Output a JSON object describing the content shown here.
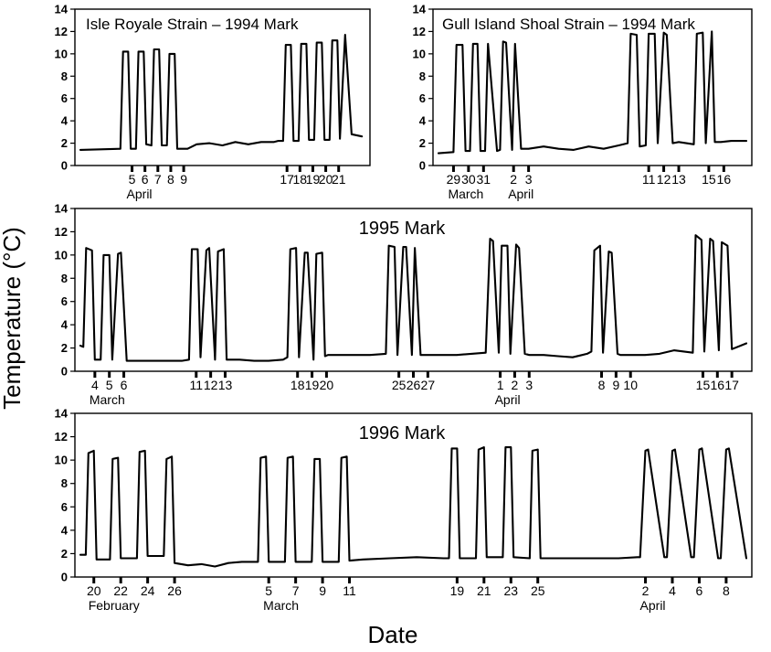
{
  "figure": {
    "y_axis_title": "Temperature (°C)",
    "x_axis_title": "Date"
  },
  "chart_data": [
    {
      "type": "line",
      "title": "Isle Royale Strain – 1994 Mark",
      "ylim": [
        0,
        14
      ],
      "yticks": [
        0,
        2,
        4,
        6,
        8,
        10,
        12,
        14
      ],
      "x_units": "day index",
      "xlim": [
        0,
        22
      ],
      "day_ticks": [
        {
          "x": 4,
          "label": "5"
        },
        {
          "x": 5,
          "label": "6"
        },
        {
          "x": 6,
          "label": "7"
        },
        {
          "x": 7,
          "label": "8"
        },
        {
          "x": 8,
          "label": "9"
        },
        {
          "x": 16,
          "label": "17"
        },
        {
          "x": 17,
          "label": "18"
        },
        {
          "x": 18,
          "label": "19"
        },
        {
          "x": 19,
          "label": "20"
        },
        {
          "x": 20,
          "label": "21"
        }
      ],
      "month_labels": [
        {
          "x": 4,
          "label": "April"
        }
      ],
      "x": [
        0,
        3.1,
        3.3,
        3.7,
        3.9,
        4.3,
        4.5,
        4.9,
        5.1,
        5.5,
        5.7,
        6.1,
        6.3,
        6.7,
        6.9,
        7.3,
        7.5,
        7.9,
        8.3,
        9,
        10,
        11,
        12,
        13,
        14,
        15,
        15.3,
        15.7,
        15.9,
        16.3,
        16.5,
        16.9,
        17.1,
        17.5,
        17.7,
        18.1,
        18.3,
        18.7,
        18.9,
        19.3,
        19.5,
        19.9,
        20.1,
        20.5,
        21,
        21.8
      ],
      "y": [
        1.4,
        1.5,
        10.2,
        10.2,
        1.5,
        1.5,
        10.2,
        10.2,
        1.9,
        1.8,
        10.4,
        10.4,
        1.8,
        1.8,
        10.0,
        10.0,
        1.5,
        1.5,
        1.5,
        1.9,
        2.0,
        1.8,
        2.1,
        1.9,
        2.1,
        2.1,
        2.2,
        2.2,
        10.8,
        10.8,
        2.2,
        2.2,
        10.9,
        10.9,
        2.3,
        2.3,
        11.0,
        11.0,
        2.3,
        2.3,
        11.2,
        11.2,
        2.4,
        11.7,
        2.8,
        2.6
      ]
    },
    {
      "type": "line",
      "title": "Gull Island Shoal Strain – 1994 Mark",
      "ylim": [
        0,
        14
      ],
      "yticks": [
        0,
        2,
        4,
        6,
        8,
        10,
        12,
        14
      ],
      "x_units": "day index",
      "xlim": [
        0,
        20.5
      ],
      "day_ticks": [
        {
          "x": 1,
          "label": "29"
        },
        {
          "x": 2,
          "label": "30"
        },
        {
          "x": 3,
          "label": "31"
        },
        {
          "x": 5,
          "label": "2"
        },
        {
          "x": 6,
          "label": "3"
        },
        {
          "x": 14,
          "label": "11"
        },
        {
          "x": 15,
          "label": "12"
        },
        {
          "x": 16,
          "label": "13"
        },
        {
          "x": 18,
          "label": "15"
        },
        {
          "x": 19,
          "label": "16"
        }
      ],
      "month_labels": [
        {
          "x": 1,
          "label": "March"
        },
        {
          "x": 5,
          "label": "April"
        }
      ],
      "x": [
        0,
        1.0,
        1.2,
        1.6,
        1.8,
        2.1,
        2.3,
        2.6,
        2.8,
        3.1,
        3.3,
        3.9,
        4.1,
        4.3,
        4.5,
        4.9,
        5.1,
        5.5,
        6,
        7,
        8,
        9,
        10,
        11,
        12,
        12.6,
        12.8,
        13.2,
        13.4,
        13.8,
        14.0,
        14.4,
        14.6,
        15.0,
        15.2,
        15.6,
        16.0,
        17,
        17.2,
        17.6,
        17.8,
        18.2,
        18.4,
        18.8,
        19.5,
        20.5
      ],
      "y": [
        1.1,
        1.2,
        10.8,
        10.8,
        1.3,
        1.3,
        10.9,
        10.9,
        1.3,
        1.3,
        10.9,
        1.3,
        1.4,
        11.1,
        11.0,
        1.4,
        10.9,
        1.5,
        1.5,
        1.7,
        1.5,
        1.4,
        1.7,
        1.5,
        1.8,
        2.0,
        11.8,
        11.7,
        1.7,
        1.8,
        11.8,
        11.8,
        2.0,
        11.9,
        11.7,
        2.0,
        2.1,
        1.9,
        11.8,
        11.9,
        2.0,
        12.0,
        2.1,
        2.1,
        2.2,
        2.2
      ]
    },
    {
      "type": "line",
      "title": "1995 Mark",
      "ylim": [
        0,
        14
      ],
      "yticks": [
        0,
        2,
        4,
        6,
        8,
        10,
        12,
        14
      ],
      "x_units": "day index",
      "xlim": [
        0,
        46
      ],
      "day_ticks": [
        {
          "x": 1,
          "label": "4"
        },
        {
          "x": 2,
          "label": "5"
        },
        {
          "x": 3,
          "label": "6"
        },
        {
          "x": 8,
          "label": "11"
        },
        {
          "x": 9,
          "label": "12"
        },
        {
          "x": 10,
          "label": "13"
        },
        {
          "x": 15,
          "label": "18"
        },
        {
          "x": 16,
          "label": "19"
        },
        {
          "x": 17,
          "label": "20"
        },
        {
          "x": 22,
          "label": "25"
        },
        {
          "x": 23,
          "label": "26"
        },
        {
          "x": 24,
          "label": "27"
        },
        {
          "x": 29,
          "label": "1"
        },
        {
          "x": 30,
          "label": "2"
        },
        {
          "x": 31,
          "label": "3"
        },
        {
          "x": 36,
          "label": "8"
        },
        {
          "x": 37,
          "label": "9"
        },
        {
          "x": 38,
          "label": "10"
        },
        {
          "x": 43,
          "label": "15"
        },
        {
          "x": 44,
          "label": "16"
        },
        {
          "x": 45,
          "label": "17"
        }
      ],
      "month_labels": [
        {
          "x": 1,
          "label": "March"
        },
        {
          "x": 29,
          "label": "April"
        }
      ],
      "x": [
        0,
        0.2,
        0.4,
        0.8,
        1.0,
        1.4,
        1.6,
        2.0,
        2.2,
        2.6,
        2.8,
        3.2,
        4,
        5,
        6,
        7,
        7.5,
        7.7,
        8.1,
        8.3,
        8.7,
        8.9,
        9.3,
        9.5,
        9.9,
        10.1,
        11,
        12,
        13,
        14,
        14.3,
        14.5,
        14.9,
        15.1,
        15.5,
        15.7,
        16.1,
        16.3,
        16.7,
        16.9,
        17.1,
        17.3,
        18,
        19,
        20,
        21.1,
        21.3,
        21.7,
        21.9,
        22.3,
        22.5,
        22.9,
        23.1,
        23.5,
        24,
        25,
        26,
        27,
        28,
        28.3,
        28.5,
        28.9,
        29.1,
        29.5,
        29.7,
        30.1,
        30.3,
        30.7,
        31,
        32,
        33,
        34,
        35,
        35.3,
        35.5,
        35.9,
        36.1,
        36.5,
        36.7,
        37.1,
        37.3,
        38,
        39,
        40,
        41,
        42.3,
        42.5,
        42.9,
        43.1,
        43.5,
        43.7,
        44.1,
        44.3,
        44.7,
        45,
        46
      ],
      "y": [
        2.2,
        2.1,
        10.6,
        10.4,
        1.0,
        1.0,
        10.0,
        10.0,
        1.0,
        10.1,
        10.2,
        0.9,
        0.9,
        0.9,
        0.9,
        0.9,
        1.0,
        10.5,
        10.5,
        1.2,
        10.4,
        10.6,
        1.0,
        10.3,
        10.5,
        1.0,
        1.0,
        0.9,
        0.9,
        1.0,
        1.2,
        10.5,
        10.6,
        1.2,
        10.2,
        10.2,
        1.0,
        10.1,
        10.2,
        1.3,
        1.4,
        1.4,
        1.4,
        1.4,
        1.4,
        1.5,
        10.8,
        10.7,
        1.4,
        10.7,
        10.7,
        1.4,
        10.6,
        1.4,
        1.4,
        1.4,
        1.4,
        1.5,
        1.6,
        11.4,
        11.2,
        1.6,
        10.8,
        10.8,
        1.5,
        10.9,
        10.6,
        1.5,
        1.4,
        1.4,
        1.3,
        1.2,
        1.5,
        1.7,
        10.4,
        10.8,
        1.6,
        10.3,
        10.2,
        1.5,
        1.4,
        1.4,
        1.4,
        1.5,
        1.8,
        1.6,
        11.7,
        11.3,
        1.7,
        11.4,
        11.2,
        1.8,
        11.1,
        10.8,
        1.9,
        2.4
      ]
    },
    {
      "type": "line",
      "title": "1996 Mark",
      "ylim": [
        0,
        14
      ],
      "yticks": [
        0,
        2,
        4,
        6,
        8,
        10,
        12,
        14
      ],
      "x_units": "day index",
      "xlim": [
        0,
        49.5
      ],
      "day_ticks": [
        {
          "x": 1,
          "label": "20"
        },
        {
          "x": 3,
          "label": "22"
        },
        {
          "x": 5,
          "label": "24"
        },
        {
          "x": 7,
          "label": "26"
        },
        {
          "x": 14,
          "label": "5"
        },
        {
          "x": 16,
          "label": "7"
        },
        {
          "x": 18,
          "label": "9"
        },
        {
          "x": 20,
          "label": "11"
        },
        {
          "x": 28,
          "label": "19"
        },
        {
          "x": 30,
          "label": "21"
        },
        {
          "x": 32,
          "label": "23"
        },
        {
          "x": 34,
          "label": "25"
        },
        {
          "x": 42,
          "label": "2"
        },
        {
          "x": 44,
          "label": "4"
        },
        {
          "x": 46,
          "label": "6"
        },
        {
          "x": 48,
          "label": "8"
        }
      ],
      "month_labels": [
        {
          "x": 1,
          "label": "February"
        },
        {
          "x": 14,
          "label": "March"
        },
        {
          "x": 42,
          "label": "April"
        }
      ],
      "x": [
        0,
        0.4,
        0.6,
        1.0,
        1.2,
        2.2,
        2.4,
        2.8,
        3.0,
        4.2,
        4.4,
        4.8,
        5.0,
        6.2,
        6.4,
        6.8,
        7.0,
        8,
        9,
        10,
        11,
        12,
        13,
        13.2,
        13.4,
        13.8,
        14.0,
        15.2,
        15.4,
        15.8,
        16.0,
        17.2,
        17.4,
        17.8,
        18.0,
        19.2,
        19.4,
        19.8,
        20.0,
        21,
        23,
        25,
        27,
        27.4,
        27.6,
        28.0,
        28.2,
        29.4,
        29.6,
        30.0,
        30.2,
        31.4,
        31.6,
        32.0,
        32.2,
        33.4,
        33.6,
        34.0,
        34.2,
        36,
        38,
        40,
        41.4,
        41.6,
        42.0,
        42.2,
        43.4,
        43.6,
        44.0,
        44.2,
        45.4,
        45.6,
        46.0,
        46.2,
        47.4,
        47.6,
        48.0,
        48.2,
        49.5
      ],
      "y": [
        1.9,
        1.9,
        10.6,
        10.8,
        1.5,
        1.5,
        10.1,
        10.2,
        1.6,
        1.6,
        10.7,
        10.8,
        1.8,
        1.8,
        10.1,
        10.3,
        1.2,
        1.0,
        1.1,
        0.9,
        1.2,
        1.3,
        1.3,
        1.3,
        10.2,
        10.3,
        1.3,
        1.3,
        10.2,
        10.3,
        1.3,
        1.3,
        10.1,
        10.1,
        1.3,
        1.3,
        10.2,
        10.3,
        1.4,
        1.5,
        1.6,
        1.7,
        1.6,
        1.6,
        11.0,
        11.0,
        1.6,
        1.6,
        10.9,
        11.1,
        1.7,
        1.7,
        11.1,
        11.1,
        1.7,
        1.6,
        10.8,
        10.9,
        1.6,
        1.6,
        1.6,
        1.6,
        1.7,
        1.7,
        10.8,
        10.9,
        1.7,
        1.7,
        10.8,
        10.9,
        1.7,
        1.7,
        10.9,
        11.0,
        1.6,
        1.6,
        10.9,
        11.0,
        1.6
      ]
    }
  ]
}
